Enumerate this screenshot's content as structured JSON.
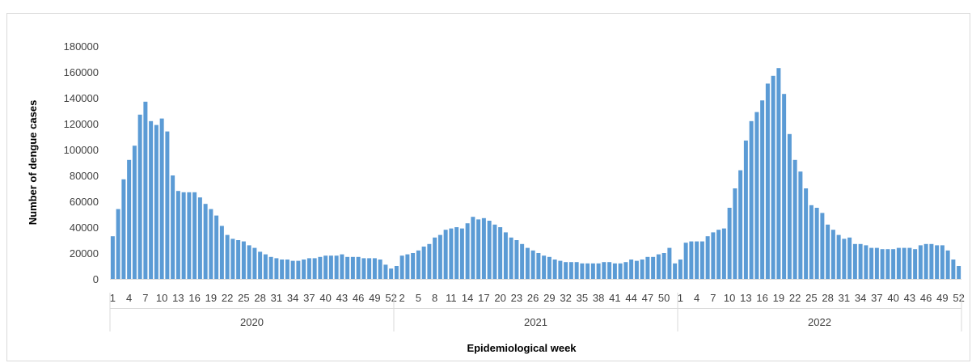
{
  "chart_data": {
    "type": "bar",
    "xlabel": "Epidemiological week",
    "ylabel": "Number of dengue cases",
    "ylim": [
      0,
      180000
    ],
    "yticks": [
      0,
      20000,
      40000,
      60000,
      80000,
      100000,
      120000,
      140000,
      160000,
      180000
    ],
    "grid": false,
    "bar_color": "#5b9bd5",
    "groups": [
      {
        "year": "2020",
        "week_labels": [
          "1",
          "4",
          "7",
          "10",
          "13",
          "16",
          "19",
          "22",
          "25",
          "28",
          "31",
          "34",
          "37",
          "40",
          "43",
          "46",
          "49",
          "52"
        ],
        "values": [
          33000,
          54000,
          77000,
          92000,
          103000,
          127000,
          137000,
          122000,
          119000,
          124000,
          114000,
          80000,
          68000,
          67000,
          67000,
          67000,
          63000,
          58000,
          54000,
          49000,
          41000,
          34000,
          31000,
          30000,
          29000,
          26000,
          24000,
          21000,
          19000,
          17000,
          16000,
          15000,
          15000,
          14000,
          14000,
          15000,
          16000,
          16000,
          17000,
          18000,
          18000,
          18000,
          19000,
          17000,
          17000,
          17000,
          16000,
          16000,
          16000,
          15000,
          11000,
          8000
        ]
      },
      {
        "year": "2021",
        "week_labels": [
          "2",
          "5",
          "8",
          "11",
          "14",
          "17",
          "20",
          "23",
          "26",
          "29",
          "32",
          "35",
          "38",
          "41",
          "44",
          "47",
          "50"
        ],
        "values": [
          10000,
          18000,
          19000,
          20000,
          22000,
          25000,
          27000,
          32000,
          34000,
          38000,
          39000,
          40000,
          39000,
          43000,
          48000,
          46000,
          47000,
          45000,
          42000,
          40000,
          36000,
          32000,
          30000,
          27000,
          24000,
          22000,
          20000,
          18000,
          17000,
          15000,
          14000,
          13000,
          13000,
          13000,
          12000,
          12000,
          12000,
          12000,
          13000,
          13000,
          12000,
          12000,
          13000,
          15000,
          14000,
          15000,
          17000,
          17000,
          19000,
          20000,
          24000,
          12000
        ]
      },
      {
        "year": "2022",
        "week_labels": [
          "1",
          "4",
          "7",
          "10",
          "13",
          "16",
          "19",
          "22",
          "25",
          "28",
          "31",
          "34",
          "37",
          "40",
          "43",
          "46",
          "49",
          "52"
        ],
        "values": [
          15000,
          28000,
          29000,
          29000,
          29000,
          33000,
          36000,
          38000,
          39000,
          55000,
          70000,
          84000,
          107000,
          122000,
          129000,
          138000,
          151000,
          157000,
          163000,
          143000,
          112000,
          92000,
          83000,
          70000,
          57000,
          55000,
          51000,
          42000,
          38000,
          34000,
          31000,
          32000,
          27000,
          27000,
          26000,
          24000,
          24000,
          23000,
          23000,
          23000,
          24000,
          24000,
          24000,
          23000,
          26000,
          27000,
          27000,
          26000,
          26000,
          22000,
          15000,
          10000
        ]
      }
    ]
  }
}
